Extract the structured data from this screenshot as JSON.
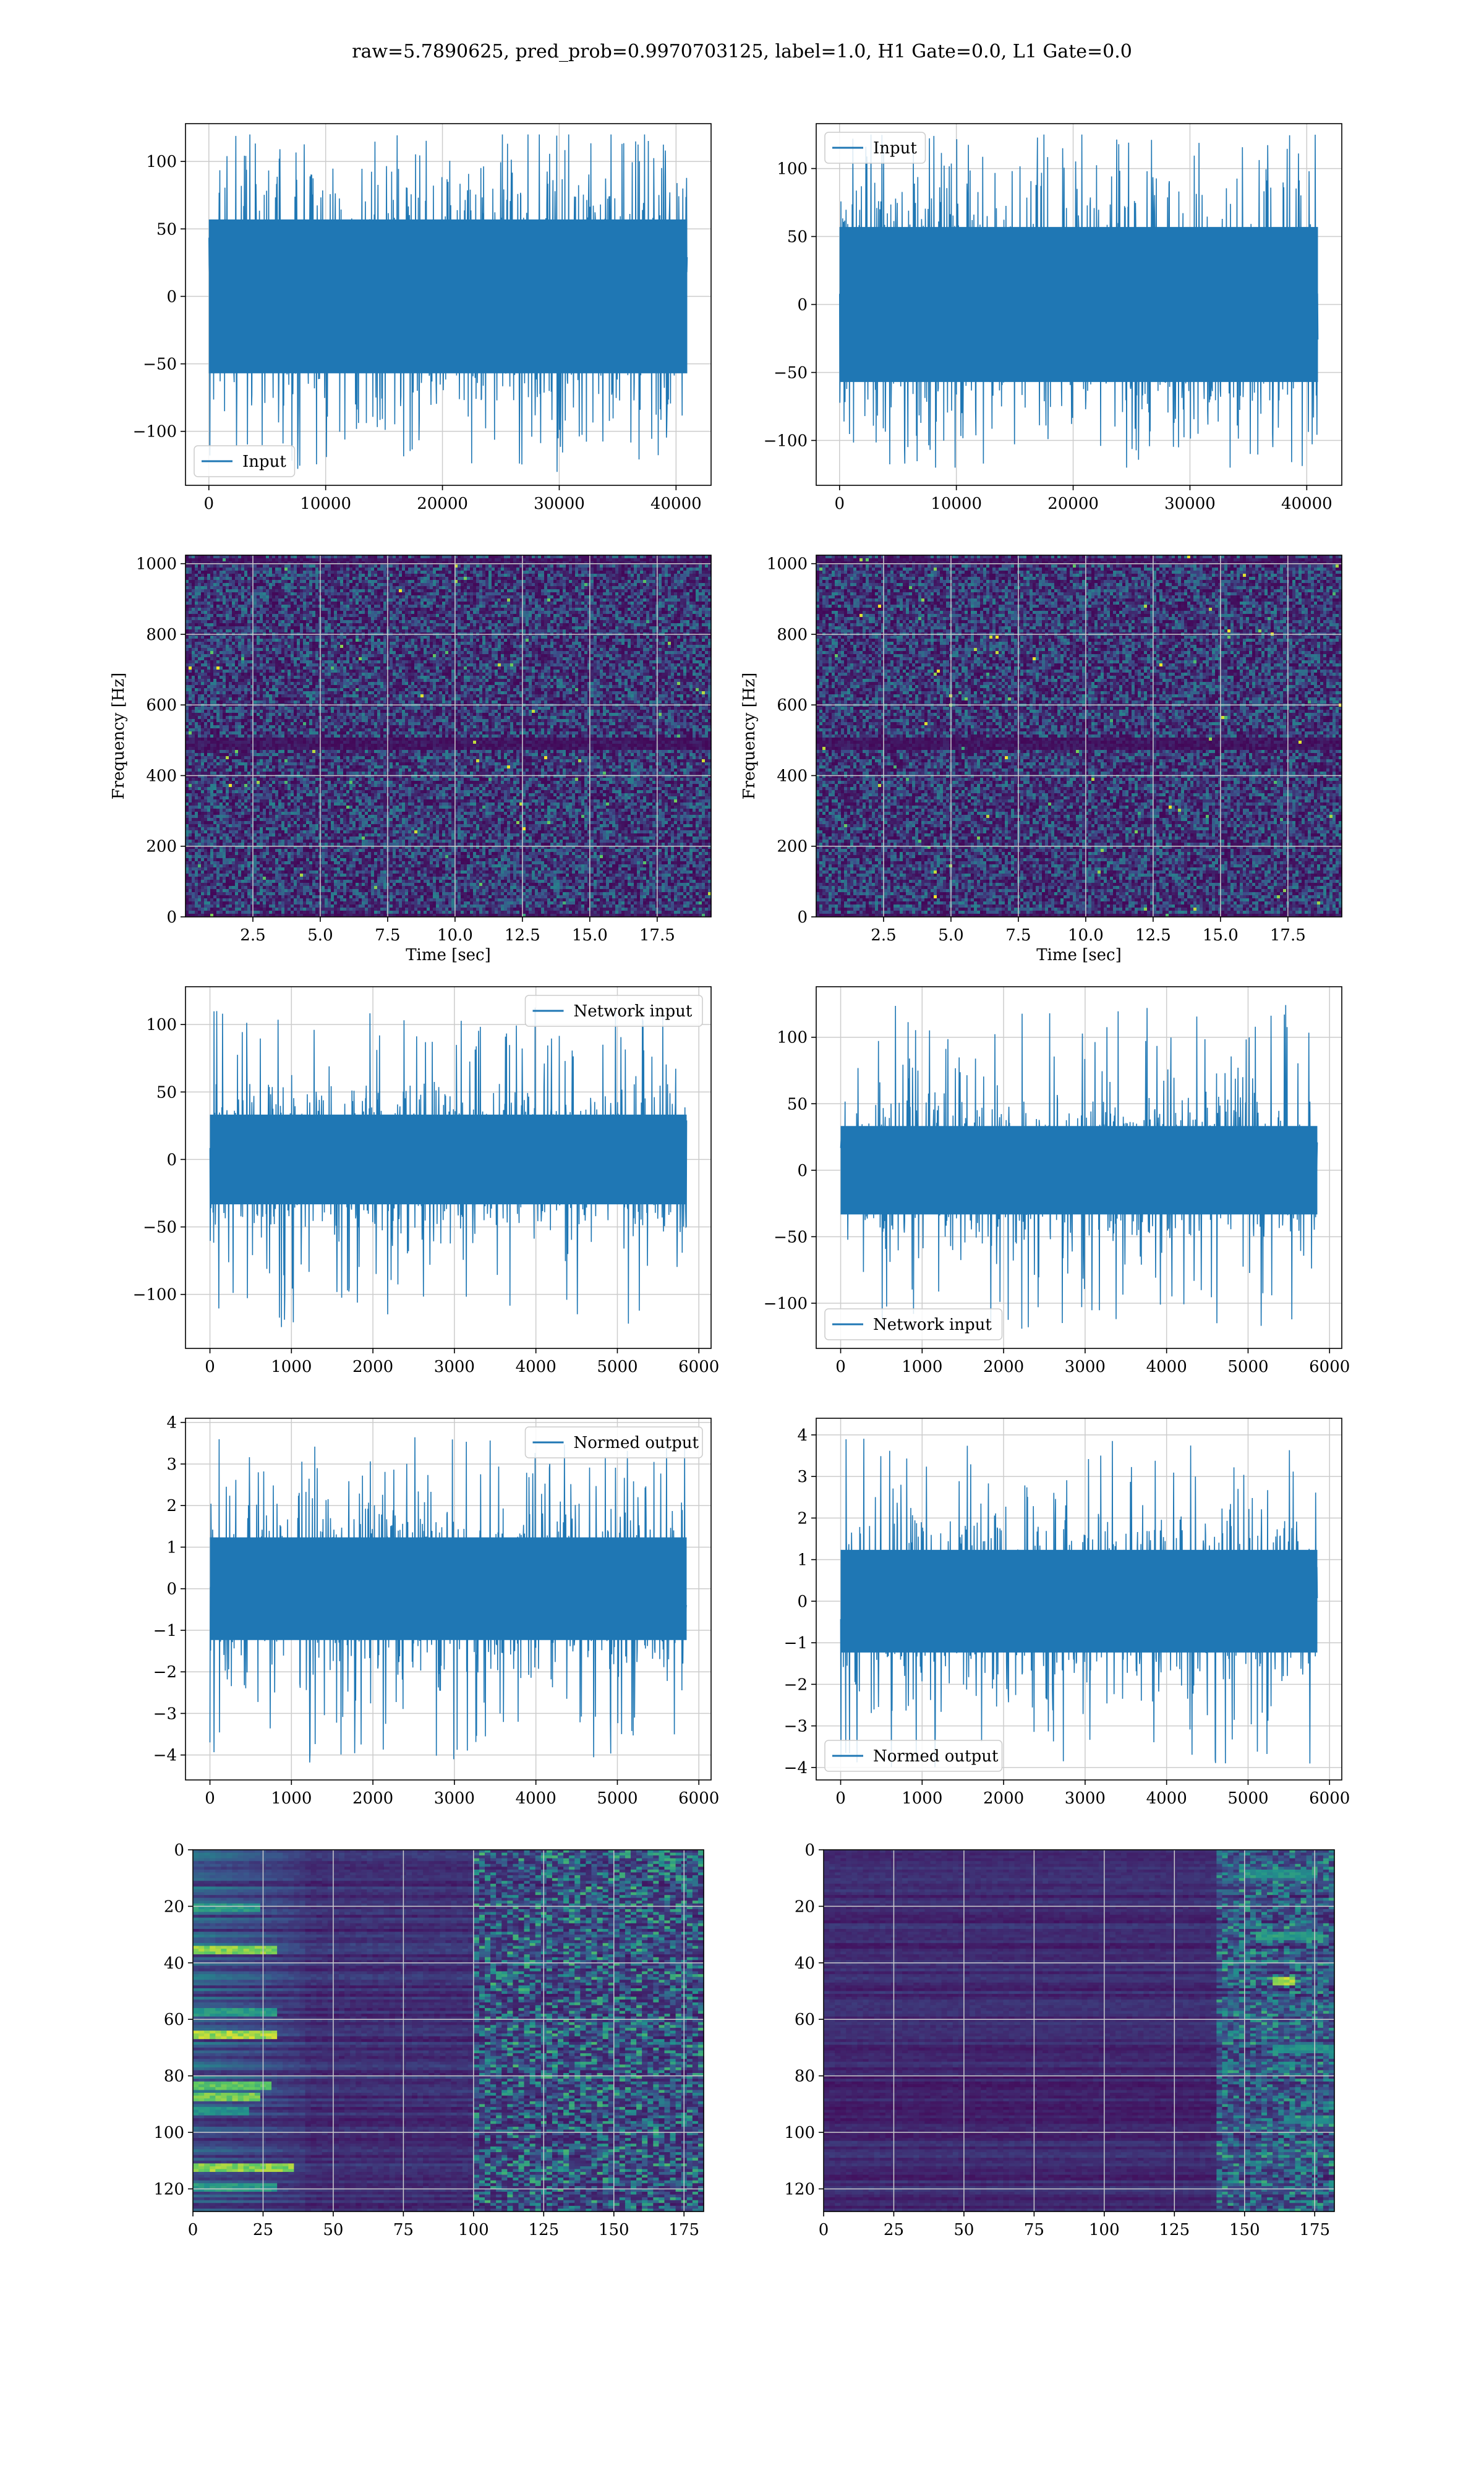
{
  "figure": {
    "title": "raw=5.7890625, pred_prob=0.9970703125, label=1.0, H1 Gate=0.0, L1 Gate=0.0"
  },
  "colors": {
    "line": "#1f77b4",
    "grid": "#cccccc",
    "viridis_low": "#440154",
    "viridis_mid": "#21918c",
    "viridis_high": "#fde725"
  },
  "chart_data": [
    {
      "id": "h1-input",
      "type": "line",
      "series": [
        {
          "name": "Input",
          "amplitude_core": 60,
          "peak_range": [
            -130,
            120
          ]
        }
      ],
      "x_range": [
        0,
        40960
      ],
      "xlim": [
        -2000,
        43000
      ],
      "ylim": [
        -140,
        128
      ],
      "xticks": [
        0,
        10000,
        20000,
        30000,
        40000
      ],
      "yticks": [
        -100,
        -50,
        0,
        50,
        100
      ],
      "xtick_labels": [
        "0",
        "10000",
        "20000",
        "30000",
        "40000"
      ],
      "ytick_labels": [
        "−100",
        "−50",
        "0",
        "50",
        "100"
      ],
      "legend": "lower-left",
      "grid": true,
      "xlabel": "",
      "ylabel": ""
    },
    {
      "id": "l1-input",
      "type": "line",
      "series": [
        {
          "name": "Input",
          "amplitude_core": 60,
          "peak_range": [
            -120,
            125
          ]
        }
      ],
      "x_range": [
        0,
        40960
      ],
      "xlim": [
        -2000,
        43000
      ],
      "ylim": [
        -133,
        133
      ],
      "xticks": [
        0,
        10000,
        20000,
        30000,
        40000
      ],
      "yticks": [
        -100,
        -50,
        0,
        50,
        100
      ],
      "xtick_labels": [
        "0",
        "10000",
        "20000",
        "30000",
        "40000"
      ],
      "ytick_labels": [
        "−100",
        "−50",
        "0",
        "50",
        "100"
      ],
      "legend": "upper-left",
      "grid": true,
      "xlabel": "",
      "ylabel": ""
    },
    {
      "id": "h1-spectrogram",
      "type": "heatmap",
      "colormap": "viridis",
      "xlim": [
        0,
        19.5
      ],
      "ylim": [
        0,
        1024
      ],
      "xticks": [
        2.5,
        5.0,
        7.5,
        10.0,
        12.5,
        15.0,
        17.5
      ],
      "yticks": [
        0,
        200,
        400,
        600,
        800,
        1000
      ],
      "xtick_labels": [
        "2.5",
        "5.0",
        "7.5",
        "10.0",
        "12.5",
        "15.0",
        "17.5"
      ],
      "ytick_labels": [
        "0",
        "200",
        "400",
        "600",
        "800",
        "1000"
      ],
      "dark_bands_hz": [
        0,
        480,
        500,
        1010
      ],
      "grid": true,
      "xlabel": "Time [sec]",
      "ylabel": "Frequency [Hz]"
    },
    {
      "id": "l1-spectrogram",
      "type": "heatmap",
      "colormap": "viridis",
      "xlim": [
        0,
        19.5
      ],
      "ylim": [
        0,
        1024
      ],
      "xticks": [
        2.5,
        5.0,
        7.5,
        10.0,
        12.5,
        15.0,
        17.5
      ],
      "yticks": [
        0,
        200,
        400,
        600,
        800,
        1000
      ],
      "xtick_labels": [
        "2.5",
        "5.0",
        "7.5",
        "10.0",
        "12.5",
        "15.0",
        "17.5"
      ],
      "ytick_labels": [
        "0",
        "200",
        "400",
        "600",
        "800",
        "1000"
      ],
      "dark_bands_hz": [
        0,
        480,
        500,
        1010
      ],
      "grid": true,
      "xlabel": "Time [sec]",
      "ylabel": "Frequency [Hz]"
    },
    {
      "id": "h1-network-input",
      "type": "line",
      "series": [
        {
          "name": "Network input",
          "amplitude_core": 35,
          "peak_range": [
            -125,
            113
          ]
        }
      ],
      "x_range": [
        0,
        5850
      ],
      "xlim": [
        -300,
        6150
      ],
      "ylim": [
        -140,
        128
      ],
      "xticks": [
        0,
        1000,
        2000,
        3000,
        4000,
        5000,
        6000
      ],
      "yticks": [
        -100,
        -50,
        0,
        50,
        100
      ],
      "xtick_labels": [
        "0",
        "1000",
        "2000",
        "3000",
        "4000",
        "5000",
        "6000"
      ],
      "ytick_labels": [
        "−100",
        "−50",
        "0",
        "50",
        "100"
      ],
      "legend": "upper-right",
      "grid": true,
      "xlabel": "",
      "ylabel": ""
    },
    {
      "id": "l1-network-input",
      "type": "line",
      "series": [
        {
          "name": "Network input",
          "amplitude_core": 35,
          "peak_range": [
            -120,
            125
          ]
        }
      ],
      "x_range": [
        0,
        5850
      ],
      "xlim": [
        -300,
        6150
      ],
      "ylim": [
        -134,
        138
      ],
      "xticks": [
        0,
        1000,
        2000,
        3000,
        4000,
        5000,
        6000
      ],
      "yticks": [
        -100,
        -50,
        0,
        50,
        100
      ],
      "xtick_labels": [
        "0",
        "1000",
        "2000",
        "3000",
        "4000",
        "5000",
        "6000"
      ],
      "ytick_labels": [
        "−100",
        "−50",
        "0",
        "50",
        "100"
      ],
      "legend": "lower-left",
      "grid": true,
      "xlabel": "",
      "ylabel": ""
    },
    {
      "id": "h1-normed-output",
      "type": "line",
      "series": [
        {
          "name": "Normed output",
          "amplitude_core": 1.3,
          "peak_range": [
            -4.2,
            3.7
          ]
        }
      ],
      "x_range": [
        0,
        5850
      ],
      "xlim": [
        -300,
        6150
      ],
      "ylim": [
        -4.6,
        4.1
      ],
      "xticks": [
        0,
        1000,
        2000,
        3000,
        4000,
        5000,
        6000
      ],
      "yticks": [
        -4,
        -3,
        -2,
        -1,
        0,
        1,
        2,
        3,
        4
      ],
      "xtick_labels": [
        "0",
        "1000",
        "2000",
        "3000",
        "4000",
        "5000",
        "6000"
      ],
      "ytick_labels": [
        "−4",
        "−3",
        "−2",
        "−1",
        "0",
        "1",
        "2",
        "3",
        "4"
      ],
      "legend": "upper-right",
      "grid": true,
      "xlabel": "",
      "ylabel": ""
    },
    {
      "id": "l1-normed-output",
      "type": "line",
      "series": [
        {
          "name": "Normed output",
          "amplitude_core": 1.3,
          "peak_range": [
            -4.0,
            4.0
          ]
        }
      ],
      "x_range": [
        0,
        5850
      ],
      "xlim": [
        -300,
        6150
      ],
      "ylim": [
        -4.3,
        4.4
      ],
      "xticks": [
        0,
        1000,
        2000,
        3000,
        4000,
        5000,
        6000
      ],
      "yticks": [
        -4,
        -3,
        -2,
        -1,
        0,
        1,
        2,
        3,
        4
      ],
      "xtick_labels": [
        "0",
        "1000",
        "2000",
        "3000",
        "4000",
        "5000",
        "6000"
      ],
      "ytick_labels": [
        "−4",
        "−3",
        "−2",
        "−1",
        "0",
        "1",
        "2",
        "3",
        "4"
      ],
      "legend": "lower-left",
      "grid": true,
      "xlabel": "",
      "ylabel": ""
    },
    {
      "id": "h1-feature-map",
      "type": "heatmap",
      "colormap": "viridis",
      "xlim": [
        0,
        182
      ],
      "ylim": [
        128,
        0
      ],
      "y_inverted": true,
      "xticks": [
        0,
        25,
        50,
        75,
        100,
        125,
        150,
        175
      ],
      "yticks": [
        0,
        20,
        40,
        60,
        80,
        100,
        120
      ],
      "xtick_labels": [
        "0",
        "25",
        "50",
        "75",
        "100",
        "125",
        "150",
        "175"
      ],
      "ytick_labels": [
        "0",
        "20",
        "40",
        "60",
        "80",
        "100",
        "120"
      ],
      "bright_streaks": [
        {
          "row": 35,
          "x_end": 30,
          "level": 0.9
        },
        {
          "row": 65,
          "x_end": 30,
          "level": 0.95
        },
        {
          "row": 83,
          "x_end": 28,
          "level": 0.8
        },
        {
          "row": 87,
          "x_end": 25,
          "level": 0.85
        },
        {
          "row": 112,
          "x_end": 35,
          "level": 0.9
        },
        {
          "row": 20,
          "x_end": 25,
          "level": 0.6
        },
        {
          "row": 57,
          "x_end": 30,
          "level": 0.6
        },
        {
          "row": 92,
          "x_end": 20,
          "level": 0.55
        },
        {
          "row": 119,
          "x_end": 30,
          "level": 0.6
        }
      ],
      "active_region_x": [
        100,
        182
      ],
      "grid": true,
      "xlabel": "",
      "ylabel": ""
    },
    {
      "id": "l1-feature-map",
      "type": "heatmap",
      "colormap": "viridis",
      "xlim": [
        0,
        182
      ],
      "ylim": [
        128,
        0
      ],
      "y_inverted": true,
      "xticks": [
        0,
        25,
        50,
        75,
        100,
        125,
        150,
        175
      ],
      "yticks": [
        0,
        20,
        40,
        60,
        80,
        100,
        120
      ],
      "xtick_labels": [
        "0",
        "25",
        "50",
        "75",
        "100",
        "125",
        "150",
        "175"
      ],
      "ytick_labels": [
        "0",
        "20",
        "40",
        "60",
        "80",
        "100",
        "120"
      ],
      "bright_streaks": [
        {
          "row": 46,
          "x_start": 160,
          "x_end": 168,
          "level": 0.95
        },
        {
          "row": 8,
          "x_start": 150,
          "x_end": 175,
          "level": 0.55
        },
        {
          "row": 30,
          "x_start": 155,
          "x_end": 178,
          "level": 0.6
        },
        {
          "row": 70,
          "x_start": 160,
          "x_end": 182,
          "level": 0.55
        },
        {
          "row": 95,
          "x_start": 165,
          "x_end": 182,
          "level": 0.5
        }
      ],
      "active_region_x": [
        140,
        182
      ],
      "grid": true,
      "xlabel": "",
      "ylabel": ""
    }
  ]
}
